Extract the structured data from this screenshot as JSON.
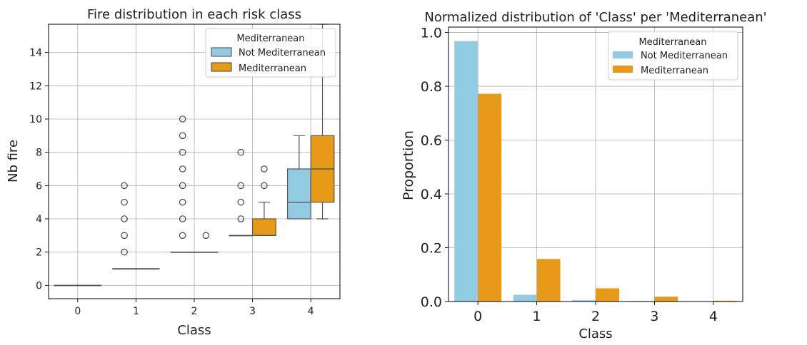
{
  "colors": {
    "not_mediterranean": "#92CCE3",
    "mediterranean": "#E79A17"
  },
  "chart_data": [
    {
      "type": "box",
      "title": "Fire distribution in each risk class",
      "xlabel": "Class",
      "ylabel": "Nb fire",
      "categories": [
        "0",
        "1",
        "2",
        "3",
        "4"
      ],
      "yticks": [
        "0",
        "2",
        "4",
        "6",
        "8",
        "10",
        "12",
        "14"
      ],
      "ylim": [
        -0.8,
        15.7
      ],
      "grid": true,
      "legend": {
        "title": "Mediterranean",
        "placement": "top-right",
        "entries": [
          "Not Mediterranean",
          "Mediterranean"
        ]
      },
      "series": [
        {
          "name": "Not Mediterranean",
          "boxes": [
            {
              "category": "0",
              "min": 0,
              "q1": 0,
              "median": 0,
              "q3": 0,
              "max": 0,
              "fliers": []
            },
            {
              "category": "1",
              "min": 1,
              "q1": 1,
              "median": 1,
              "q3": 1,
              "max": 1,
              "fliers": [
                2,
                3,
                4,
                5,
                6
              ]
            },
            {
              "category": "2",
              "min": 2,
              "q1": 2,
              "median": 2,
              "q3": 2,
              "max": 2,
              "fliers": [
                3,
                4,
                5,
                6,
                7,
                8,
                9,
                10
              ]
            },
            {
              "category": "3",
              "min": 3,
              "q1": 3,
              "median": 3,
              "q3": 3,
              "max": 3,
              "fliers": [
                4,
                5,
                6,
                8
              ]
            },
            {
              "category": "4",
              "min": 4,
              "q1": 4,
              "median": 5,
              "q3": 7,
              "max": 9,
              "fliers": []
            }
          ]
        },
        {
          "name": "Mediterranean",
          "boxes": [
            {
              "category": "0",
              "min": 0,
              "q1": 0,
              "median": 0,
              "q3": 0,
              "max": 0,
              "fliers": []
            },
            {
              "category": "1",
              "min": 1,
              "q1": 1,
              "median": 1,
              "q3": 1,
              "max": 1,
              "fliers": []
            },
            {
              "category": "2",
              "min": 2,
              "q1": 2,
              "median": 2,
              "q3": 2,
              "max": 2,
              "fliers": [
                3
              ]
            },
            {
              "category": "3",
              "min": 3,
              "q1": 3,
              "median": 3,
              "q3": 4,
              "max": 5,
              "fliers": [
                6,
                7
              ]
            },
            {
              "category": "4",
              "min": 4,
              "q1": 5,
              "median": 7,
              "q3": 9,
              "max": 15.7,
              "fliers": []
            }
          ]
        }
      ]
    },
    {
      "type": "bar",
      "title": "Normalized distribution of 'Class' per 'Mediterranean'",
      "xlabel": "Class",
      "ylabel": "Proportion",
      "categories": [
        "0",
        "1",
        "2",
        "3",
        "4"
      ],
      "yticks": [
        "0.0",
        "0.2",
        "0.4",
        "0.6",
        "0.8",
        "1.0"
      ],
      "ylim": [
        0,
        1.02
      ],
      "grid": true,
      "legend": {
        "title": "Mediterranean",
        "placement": "top-right",
        "entries": [
          "Not Mediterranean",
          "Mediterranean"
        ]
      },
      "series": [
        {
          "name": "Not Mediterranean",
          "values": [
            0.968,
            0.025,
            0.005,
            0.002,
            0.0
          ]
        },
        {
          "name": "Mediterranean",
          "values": [
            0.772,
            0.158,
            0.049,
            0.018,
            0.003
          ]
        }
      ]
    }
  ]
}
